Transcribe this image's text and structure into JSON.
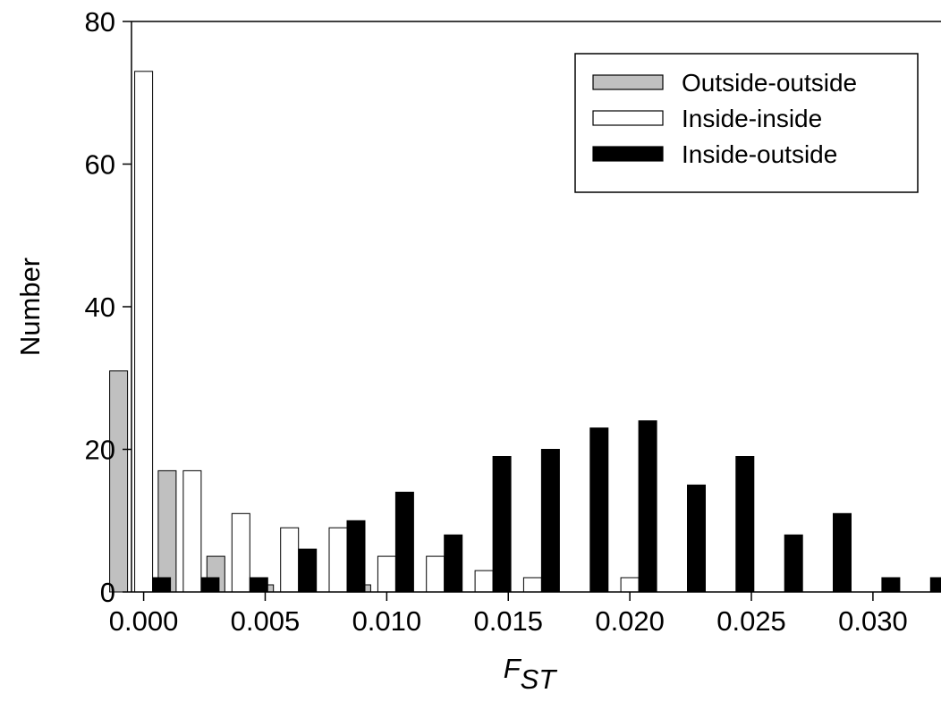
{
  "chart_data": {
    "type": "bar",
    "xlabel": "F",
    "xlabel_sub": "ST",
    "ylabel": "Number",
    "ylim": [
      0,
      80
    ],
    "yticks": [
      "0",
      "20",
      "40",
      "60",
      "80"
    ],
    "xlim": [
      -0.0005,
      0.0328
    ],
    "xticks": [
      "0.000",
      "0.005",
      "0.010",
      "0.015",
      "0.020",
      "0.025",
      "0.030"
    ],
    "xtick_values": [
      0.0,
      0.005,
      0.01,
      0.015,
      0.02,
      0.025,
      0.03
    ],
    "bin_centers": [
      0.0,
      0.002,
      0.004,
      0.006,
      0.008,
      0.01,
      0.012,
      0.014,
      0.016,
      0.018,
      0.02,
      0.022,
      0.024,
      0.026,
      0.028,
      0.03,
      0.032
    ],
    "series": [
      {
        "name": "Outside-outside",
        "color": "#c0c0c0",
        "values": [
          31,
          17,
          5,
          1,
          0,
          1,
          0,
          0,
          0,
          0,
          0,
          0,
          0,
          0,
          0,
          0,
          0
        ]
      },
      {
        "name": "Inside-inside",
        "color": "#ffffff",
        "values": [
          73,
          17,
          11,
          9,
          9,
          5,
          5,
          3,
          2,
          0,
          2,
          0,
          0,
          0,
          0,
          0,
          0
        ]
      },
      {
        "name": "Inside-outside",
        "color": "#000000",
        "values": [
          2,
          2,
          2,
          6,
          10,
          14,
          8,
          19,
          20,
          23,
          24,
          15,
          19,
          8,
          11,
          2,
          2
        ]
      }
    ],
    "legend_position": "top-right",
    "grid": false
  }
}
